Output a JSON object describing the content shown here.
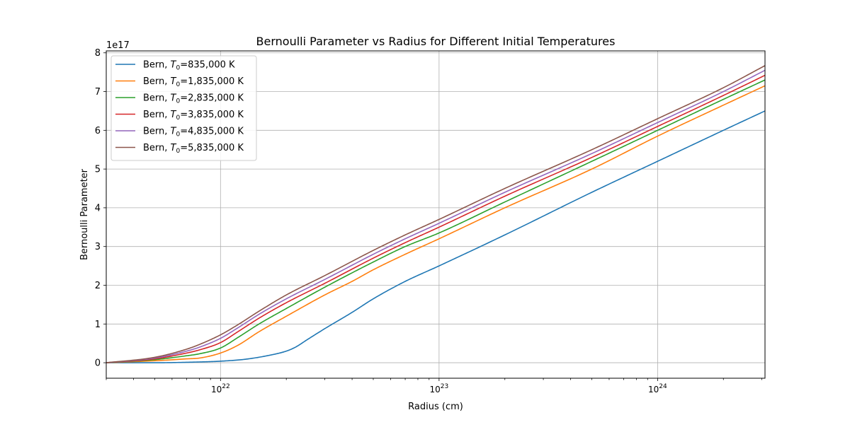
{
  "chart_data": {
    "type": "line",
    "title": "Bernoulli Parameter vs Radius for Different Initial Temperatures",
    "xlabel": "Radius (cm)",
    "ylabel": "Bernoulli Parameter",
    "xscale": "log",
    "xlim": [
      3e+21,
      3.1e+24
    ],
    "ylim": [
      -0.4,
      8.05
    ],
    "y_multiplier_label": "1e17",
    "grid": true,
    "legend_location": "upper left",
    "x_ticks": [
      {
        "value": 1e+22,
        "base": "10",
        "exp": "22"
      },
      {
        "value": 1e+23,
        "base": "10",
        "exp": "23"
      },
      {
        "value": 1e+24,
        "base": "10",
        "exp": "24"
      }
    ],
    "y_ticks": [
      0,
      1,
      2,
      3,
      4,
      5,
      6,
      7,
      8
    ],
    "series": [
      {
        "legend_prefix": "Bern, ",
        "legend_var": "T",
        "legend_sub": "0",
        "legend_suffix": "=835,000 K",
        "color": "#1f77b4",
        "x": [
          3e+21,
          5e+21,
          8e+21,
          1e+22,
          1.3e+22,
          1.7e+22,
          2e+22,
          2.2e+22,
          2.5e+22,
          3e+22,
          4e+22,
          5e+22,
          7e+22,
          1e+23,
          2e+23,
          5e+23,
          1e+24,
          2e+24,
          3.1e+24
        ],
        "y": [
          0.0,
          0.0,
          0.02,
          0.04,
          0.09,
          0.2,
          0.3,
          0.4,
          0.6,
          0.88,
          1.3,
          1.65,
          2.1,
          2.5,
          3.3,
          4.4,
          5.2,
          6.0,
          6.5
        ]
      },
      {
        "legend_prefix": "Bern, ",
        "legend_var": "T",
        "legend_sub": "0",
        "legend_suffix": "=1,835,000 K",
        "color": "#ff7f0e",
        "x": [
          3e+21,
          5e+21,
          7e+21,
          8e+21,
          1e+22,
          1.2e+22,
          1.5e+22,
          2e+22,
          3e+22,
          4e+22,
          5e+22,
          7e+22,
          1e+23,
          2e+23,
          5e+23,
          1e+24,
          2e+24,
          3.1e+24
        ],
        "y": [
          0.0,
          0.05,
          0.1,
          0.12,
          0.25,
          0.45,
          0.8,
          1.2,
          1.75,
          2.1,
          2.4,
          2.8,
          3.2,
          4.0,
          5.0,
          5.85,
          6.65,
          7.15
        ]
      },
      {
        "legend_prefix": "Bern, ",
        "legend_var": "T",
        "legend_sub": "0",
        "legend_suffix": "=2,835,000 K",
        "color": "#2ca02c",
        "x": [
          3e+21,
          5e+21,
          7e+21,
          8e+21,
          1e+22,
          1.2e+22,
          1.5e+22,
          2e+22,
          3e+22,
          5e+22,
          7e+22,
          1e+23,
          2e+23,
          5e+23,
          1e+24,
          2e+24,
          3.1e+24
        ],
        "y": [
          0.0,
          0.08,
          0.18,
          0.23,
          0.38,
          0.65,
          1.0,
          1.4,
          1.95,
          2.6,
          3.0,
          3.35,
          4.15,
          5.2,
          6.0,
          6.8,
          7.3
        ]
      },
      {
        "legend_prefix": "Bern, ",
        "legend_var": "T",
        "legend_sub": "0",
        "legend_suffix": "=3,835,000 K",
        "color": "#d62728",
        "x": [
          3e+21,
          5e+21,
          7e+21,
          8e+21,
          1e+22,
          1.2e+22,
          1.5e+22,
          2e+22,
          3e+22,
          5e+22,
          7e+22,
          1e+23,
          2e+23,
          5e+23,
          1e+24,
          2e+24,
          3.1e+24
        ],
        "y": [
          0.0,
          0.1,
          0.25,
          0.33,
          0.52,
          0.8,
          1.15,
          1.55,
          2.05,
          2.7,
          3.1,
          3.5,
          4.3,
          5.3,
          6.1,
          6.9,
          7.42
        ]
      },
      {
        "legend_prefix": "Bern, ",
        "legend_var": "T",
        "legend_sub": "0",
        "legend_suffix": "=4,835,000 K",
        "color": "#9467bd",
        "x": [
          3e+21,
          5e+21,
          7e+21,
          8e+21,
          1e+22,
          1.2e+22,
          1.5e+22,
          2e+22,
          3e+22,
          5e+22,
          7e+22,
          1e+23,
          2e+23,
          5e+23,
          1e+24,
          2e+24,
          3.1e+24
        ],
        "y": [
          0.0,
          0.12,
          0.3,
          0.4,
          0.63,
          0.9,
          1.25,
          1.65,
          2.15,
          2.8,
          3.2,
          3.6,
          4.4,
          5.4,
          6.2,
          7.0,
          7.55
        ]
      },
      {
        "legend_prefix": "Bern, ",
        "legend_var": "T",
        "legend_sub": "0",
        "legend_suffix": "=5,835,000 K",
        "color": "#8c564b",
        "x": [
          3e+21,
          5e+21,
          7e+21,
          8e+21,
          1e+22,
          1.2e+22,
          1.5e+22,
          2e+22,
          3e+22,
          5e+22,
          7e+22,
          1e+23,
          2e+23,
          5e+23,
          1e+24,
          2e+24,
          3.1e+24
        ],
        "y": [
          0.0,
          0.14,
          0.35,
          0.47,
          0.72,
          0.98,
          1.33,
          1.75,
          2.25,
          2.9,
          3.3,
          3.7,
          4.5,
          5.5,
          6.3,
          7.1,
          7.67
        ]
      }
    ]
  }
}
